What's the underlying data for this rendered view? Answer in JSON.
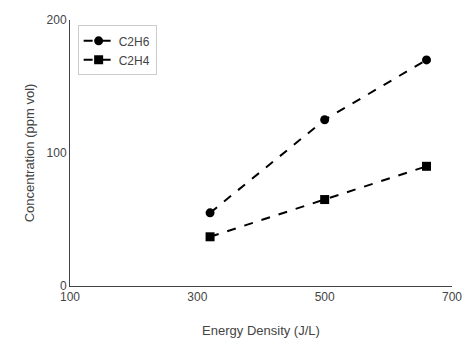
{
  "chart_data": {
    "type": "line",
    "x_label": "Energy Density (J/L)",
    "y_label": "Concentration (ppm vol)",
    "x": [
      320,
      500,
      660
    ],
    "series": [
      {
        "name": "C2H6",
        "color": "black",
        "marker": "circle",
        "line_style": "dash",
        "values": [
          55,
          125,
          170
        ]
      },
      {
        "name": "C2H4",
        "color": "black",
        "marker": "square",
        "line_style": "dash",
        "values": [
          37,
          65,
          90
        ]
      }
    ],
    "xlim": [
      100,
      700
    ],
    "ylim": [
      0,
      200
    ],
    "xticks": [
      100,
      300,
      500,
      700
    ],
    "yticks": [
      0,
      100,
      200
    ],
    "grid": false,
    "legend": "upper left"
  }
}
